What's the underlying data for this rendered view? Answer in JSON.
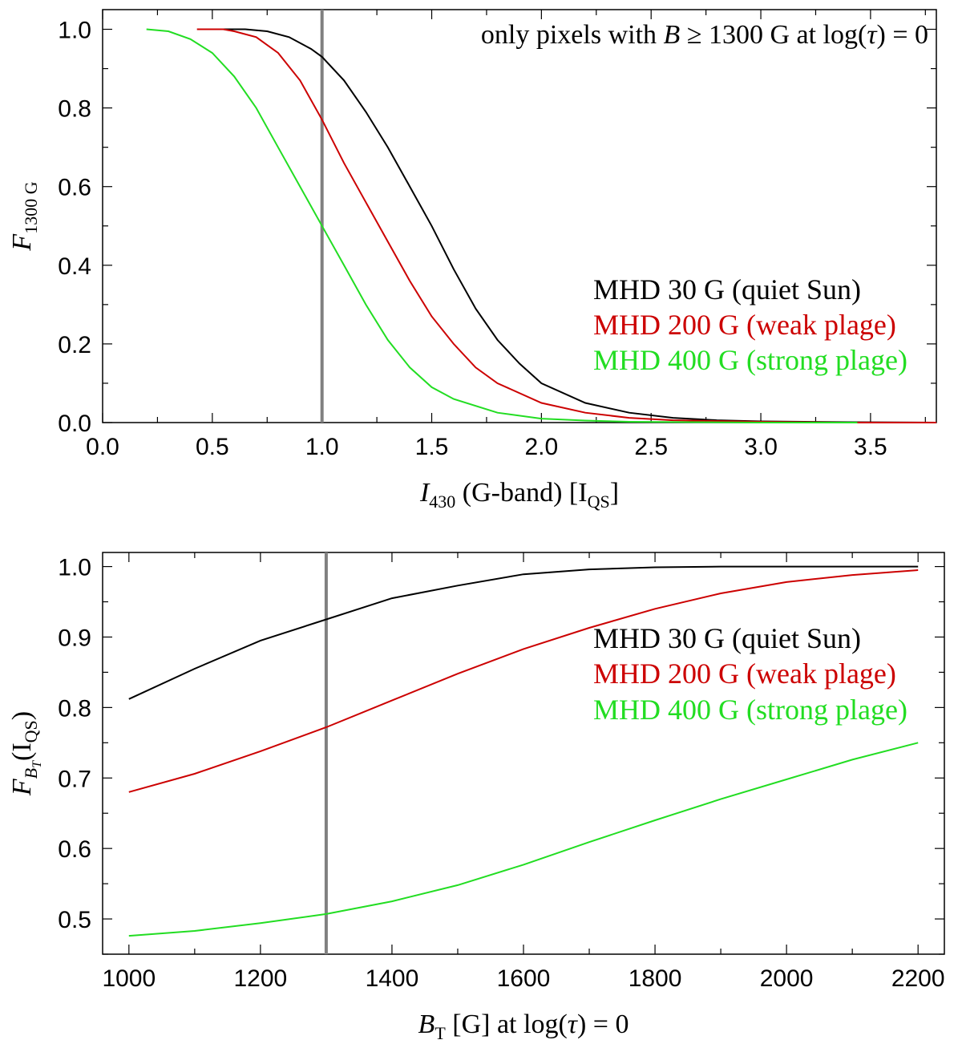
{
  "colors": {
    "quiet_sun": "#000000",
    "weak_plage": "#cc0000",
    "strong_plage": "#22dd22",
    "reference_line": "#808080"
  },
  "chart_data": [
    {
      "type": "line",
      "annotation": {
        "prefix": "only pixels with ",
        "var": "B",
        "rel": " ≥ 1300 G at log(",
        "tau": "τ",
        "suffix": ") = 0"
      },
      "xlabel": {
        "var": "I",
        "sub": "430",
        "rest": " (G-band) [I",
        "rest_sub": "QS",
        "close": "]"
      },
      "ylabel": {
        "var": "F",
        "sub": "1300 G"
      },
      "xlim": [
        0.0,
        3.8
      ],
      "ylim": [
        0.0,
        1.05
      ],
      "xticks": [
        "0.0",
        "0.5",
        "1.0",
        "1.5",
        "2.0",
        "2.5",
        "3.0",
        "3.5"
      ],
      "yticks": [
        "0.0",
        "0.2",
        "0.4",
        "0.6",
        "0.8",
        "1.0"
      ],
      "reference_x": 1.0,
      "legend_position": "right",
      "series": [
        {
          "name": "MHD  30 G (quiet Sun)",
          "color_key": "quiet_sun",
          "x": [
            0.45,
            0.55,
            0.65,
            0.75,
            0.85,
            0.95,
            1.0,
            1.1,
            1.2,
            1.3,
            1.4,
            1.5,
            1.6,
            1.7,
            1.8,
            1.9,
            2.0,
            2.2,
            2.4,
            2.6,
            2.8,
            3.0,
            3.4,
            3.8
          ],
          "y": [
            1.0,
            1.0,
            1.0,
            0.995,
            0.98,
            0.95,
            0.93,
            0.87,
            0.79,
            0.7,
            0.6,
            0.5,
            0.39,
            0.29,
            0.21,
            0.15,
            0.1,
            0.05,
            0.025,
            0.012,
            0.006,
            0.003,
            0.001,
            0.0
          ]
        },
        {
          "name": "MHD 200 G (weak plage)",
          "color_key": "weak_plage",
          "x": [
            0.43,
            0.55,
            0.6,
            0.7,
            0.8,
            0.9,
            1.0,
            1.1,
            1.2,
            1.3,
            1.4,
            1.5,
            1.6,
            1.7,
            1.8,
            2.0,
            2.2,
            2.4,
            2.6,
            3.0,
            3.4,
            3.8
          ],
          "y": [
            1.0,
            1.0,
            0.995,
            0.98,
            0.94,
            0.87,
            0.77,
            0.66,
            0.56,
            0.46,
            0.36,
            0.27,
            0.2,
            0.14,
            0.1,
            0.05,
            0.025,
            0.012,
            0.006,
            0.002,
            0.0,
            0.0
          ]
        },
        {
          "name": "MHD 400 G (strong plage)",
          "color_key": "strong_plage",
          "x": [
            0.2,
            0.3,
            0.4,
            0.5,
            0.6,
            0.7,
            0.8,
            0.9,
            1.0,
            1.1,
            1.2,
            1.3,
            1.4,
            1.5,
            1.6,
            1.8,
            2.0,
            2.2,
            2.4,
            3.0,
            3.44
          ],
          "y": [
            1.0,
            0.995,
            0.975,
            0.94,
            0.88,
            0.8,
            0.7,
            0.6,
            0.5,
            0.4,
            0.3,
            0.21,
            0.14,
            0.09,
            0.06,
            0.025,
            0.01,
            0.005,
            0.002,
            0.0,
            0.0
          ]
        }
      ]
    },
    {
      "type": "line",
      "xlabel": {
        "var": "B",
        "sub": "T",
        "rest": " [G] at log(",
        "tau": "τ",
        "close": ") = 0"
      },
      "ylabel": {
        "var": "F",
        "sub": "B",
        "subsub": "T",
        "rest": "(I",
        "rest_sub": "QS",
        "close": ")"
      },
      "xlim": [
        960,
        2240
      ],
      "ylim": [
        0.45,
        1.02
      ],
      "xticks": [
        "1000",
        "1200",
        "1400",
        "1600",
        "1800",
        "2000",
        "2200"
      ],
      "yticks": [
        "0.5",
        "0.6",
        "0.7",
        "0.8",
        "0.9",
        "1.0"
      ],
      "reference_x": 1300,
      "legend_position": "right",
      "series": [
        {
          "name": "MHD  30 G (quiet Sun)",
          "color_key": "quiet_sun",
          "x": [
            1000,
            1100,
            1200,
            1300,
            1400,
            1500,
            1600,
            1700,
            1800,
            1900,
            2000,
            2100,
            2200
          ],
          "y": [
            0.812,
            0.855,
            0.895,
            0.925,
            0.955,
            0.973,
            0.989,
            0.996,
            0.999,
            1.0,
            1.0,
            1.0,
            1.0
          ]
        },
        {
          "name": "MHD 200 G (weak plage)",
          "color_key": "weak_plage",
          "x": [
            1000,
            1100,
            1200,
            1300,
            1400,
            1500,
            1600,
            1700,
            1800,
            1900,
            2000,
            2100,
            2200
          ],
          "y": [
            0.68,
            0.706,
            0.738,
            0.772,
            0.81,
            0.848,
            0.883,
            0.913,
            0.94,
            0.962,
            0.978,
            0.988,
            0.995
          ]
        },
        {
          "name": "MHD 400 G (strong plage)",
          "color_key": "strong_plage",
          "x": [
            1000,
            1100,
            1200,
            1300,
            1400,
            1500,
            1600,
            1700,
            1800,
            1900,
            2000,
            2100,
            2200
          ],
          "y": [
            0.476,
            0.483,
            0.494,
            0.507,
            0.525,
            0.548,
            0.577,
            0.609,
            0.64,
            0.67,
            0.698,
            0.726,
            0.75
          ]
        }
      ]
    }
  ]
}
